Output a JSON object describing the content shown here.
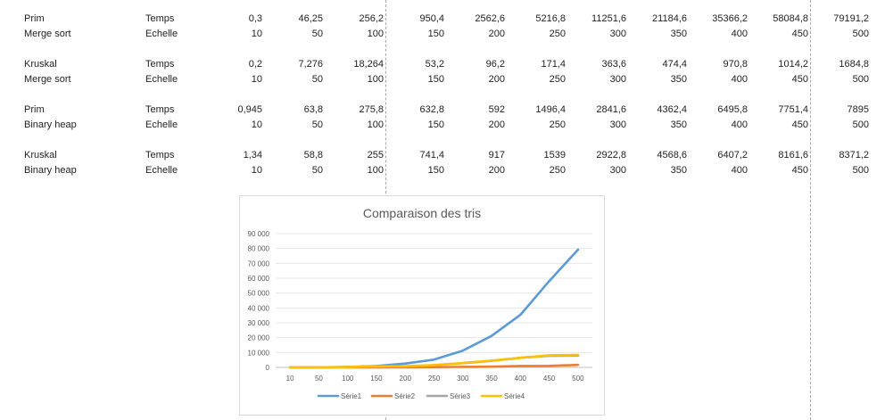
{
  "table": {
    "blocks": [
      {
        "name1": "Prim",
        "name2": "Merge sort",
        "label1": "Temps",
        "label2": "Echelle",
        "temps": [
          "0,3",
          "46,25",
          "256,2",
          "950,4",
          "2562,6",
          "5216,8",
          "11251,6",
          "21184,6",
          "35366,2",
          "58084,8",
          "79191,2"
        ],
        "echelle": [
          "10",
          "50",
          "100",
          "150",
          "200",
          "250",
          "300",
          "350",
          "400",
          "450",
          "500"
        ]
      },
      {
        "name1": "Kruskal",
        "name2": "Merge sort",
        "label1": "Temps",
        "label2": "Echelle",
        "temps": [
          "0,2",
          "7,276",
          "18,264",
          "53,2",
          "96,2",
          "171,4",
          "363,6",
          "474,4",
          "970,8",
          "1014,2",
          "1684,8"
        ],
        "echelle": [
          "10",
          "50",
          "100",
          "150",
          "200",
          "250",
          "300",
          "350",
          "400",
          "450",
          "500"
        ]
      },
      {
        "name1": "Prim",
        "name2": "Binary heap",
        "label1": "Temps",
        "label2": "Echelle",
        "temps": [
          "0,945",
          "63,8",
          "275,8",
          "632,8",
          "592",
          "1496,4",
          "2841,6",
          "4362,4",
          "6495,8",
          "7751,4",
          "7895"
        ],
        "echelle": [
          "10",
          "50",
          "100",
          "150",
          "200",
          "250",
          "300",
          "350",
          "400",
          "450",
          "500"
        ]
      },
      {
        "name1": "Kruskal",
        "name2": "Binary heap",
        "label1": "Temps",
        "label2": "Echelle",
        "temps": [
          "1,34",
          "58,8",
          "255",
          "741,4",
          "917",
          "1539",
          "2922,8",
          "4568,6",
          "6407,2",
          "8161,6",
          "8371,2"
        ],
        "echelle": [
          "10",
          "50",
          "100",
          "150",
          "200",
          "250",
          "300",
          "350",
          "400",
          "450",
          "500"
        ]
      }
    ]
  },
  "chart_data": {
    "type": "line",
    "title": "Comparaison des tris",
    "xlabel": "",
    "ylabel": "",
    "categories": [
      "10",
      "50",
      "100",
      "150",
      "200",
      "250",
      "300",
      "350",
      "400",
      "450",
      "500"
    ],
    "ylim": [
      0,
      90000
    ],
    "yticks": [
      "0",
      "10000",
      "20000",
      "30000",
      "40000",
      "50000",
      "60000",
      "70000",
      "80000",
      "90000"
    ],
    "grid": true,
    "legend_position": "bottom",
    "series": [
      {
        "name": "Série1",
        "color": "#5b9bd5",
        "values": [
          0.3,
          46.25,
          256.2,
          950.4,
          2562.6,
          5216.8,
          11251.6,
          21184.6,
          35366.2,
          58084.8,
          79191.2
        ]
      },
      {
        "name": "Série2",
        "color": "#ed7d31",
        "values": [
          0.2,
          7.276,
          18.264,
          53.2,
          96.2,
          171.4,
          363.6,
          474.4,
          970.8,
          1014.2,
          1684.8
        ]
      },
      {
        "name": "Série3",
        "color": "#a5a5a5",
        "values": [
          0.945,
          63.8,
          275.8,
          632.8,
          592,
          1496.4,
          2841.6,
          4362.4,
          6495.8,
          7751.4,
          7895
        ]
      },
      {
        "name": "Série4",
        "color": "#ffc000",
        "values": [
          1.34,
          58.8,
          255,
          741.4,
          917,
          1539,
          2922.8,
          4568.6,
          6407.2,
          8161.6,
          8371.2
        ]
      }
    ]
  }
}
